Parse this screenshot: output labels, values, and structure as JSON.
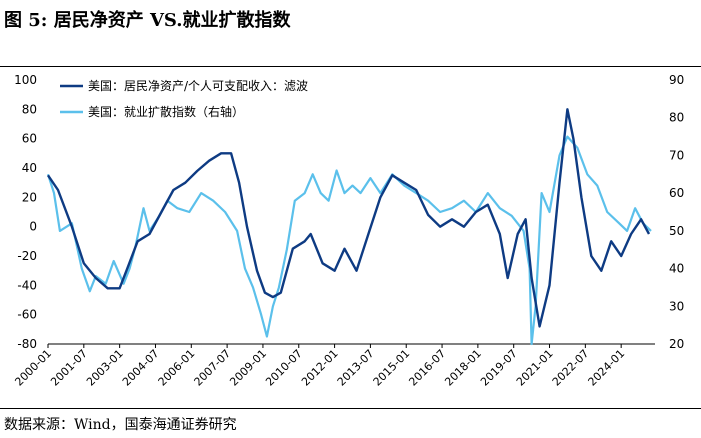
{
  "figure": {
    "title": "图 5:  居民净资产 VS.就业扩散指数",
    "source": "数据来源：Wind，国泰海通证券研究"
  },
  "chart_data": {
    "type": "line",
    "title": "",
    "xlabel": "",
    "ylabel": "",
    "y2label": "",
    "ylim": [
      -80,
      100
    ],
    "yticks": [
      100,
      80,
      60,
      40,
      20,
      0,
      -20,
      -40,
      -60,
      -80
    ],
    "y2lim": [
      20,
      90
    ],
    "y2ticks": [
      90,
      80,
      70,
      60,
      50,
      40,
      30,
      20
    ],
    "xlim": [
      "2000-01",
      "2025-06"
    ],
    "xticks": [
      "2000-01",
      "2001-07",
      "2003-01",
      "2004-07",
      "2006-01",
      "2007-07",
      "2009-01",
      "2010-07",
      "2012-01",
      "2013-07",
      "2015-01",
      "2016-07",
      "2018-01",
      "2019-07",
      "2021-01",
      "2022-07",
      "2024-01"
    ],
    "grid": false,
    "legend_position": "top-left",
    "series": [
      {
        "name": "美国：居民净资产/个人可支配收入：滤波",
        "axis": "left",
        "color": "#0e3b83",
        "x": [
          "2000-01",
          "2000-06",
          "2001-01",
          "2001-07",
          "2002-01",
          "2002-07",
          "2003-01",
          "2003-05",
          "2003-10",
          "2004-04",
          "2004-10",
          "2005-04",
          "2005-10",
          "2006-04",
          "2006-10",
          "2007-04",
          "2007-09",
          "2008-01",
          "2008-05",
          "2008-10",
          "2009-02",
          "2009-06",
          "2009-10",
          "2010-04",
          "2010-10",
          "2011-01",
          "2011-07",
          "2012-01",
          "2012-06",
          "2012-12",
          "2013-06",
          "2013-12",
          "2014-06",
          "2014-12",
          "2015-06",
          "2015-12",
          "2016-06",
          "2016-12",
          "2017-06",
          "2017-12",
          "2018-06",
          "2018-12",
          "2019-04",
          "2019-09",
          "2020-01",
          "2020-04",
          "2020-08",
          "2021-01",
          "2021-06",
          "2021-10",
          "2022-01",
          "2022-05",
          "2022-10",
          "2023-03",
          "2023-08",
          "2024-01",
          "2024-06",
          "2024-11",
          "2025-03"
        ],
        "y": [
          35,
          25,
          0,
          -25,
          -35,
          -42,
          -42,
          -28,
          -10,
          -5,
          10,
          25,
          30,
          38,
          45,
          50,
          50,
          30,
          0,
          -30,
          -45,
          -48,
          -45,
          -15,
          -10,
          -5,
          -25,
          -30,
          -15,
          -30,
          -5,
          20,
          35,
          30,
          25,
          8,
          0,
          5,
          0,
          10,
          15,
          -5,
          -35,
          -5,
          5,
          -35,
          -68,
          -40,
          30,
          80,
          60,
          20,
          -20,
          -30,
          -10,
          -20,
          -5,
          5,
          -5
        ]
      },
      {
        "name": "美国：就业扩散指数（右轴）",
        "axis": "right",
        "color": "#5bc0eb",
        "x": [
          "2000-01",
          "2000-04",
          "2000-07",
          "2001-01",
          "2001-06",
          "2001-10",
          "2002-01",
          "2002-06",
          "2002-10",
          "2003-03",
          "2003-06",
          "2003-09",
          "2004-01",
          "2004-04",
          "2004-09",
          "2005-01",
          "2005-06",
          "2005-12",
          "2006-06",
          "2006-12",
          "2007-06",
          "2007-12",
          "2008-04",
          "2008-08",
          "2008-12",
          "2009-03",
          "2009-06",
          "2009-09",
          "2010-01",
          "2010-05",
          "2010-10",
          "2011-02",
          "2011-06",
          "2011-10",
          "2012-02",
          "2012-06",
          "2012-10",
          "2013-02",
          "2013-07",
          "2013-12",
          "2014-06",
          "2014-12",
          "2015-06",
          "2015-12",
          "2016-06",
          "2016-12",
          "2017-06",
          "2017-12",
          "2018-06",
          "2018-12",
          "2019-06",
          "2019-12",
          "2020-03",
          "2020-04",
          "2020-06",
          "2020-09",
          "2021-01",
          "2021-06",
          "2021-10",
          "2022-03",
          "2022-08",
          "2023-01",
          "2023-06",
          "2023-12",
          "2024-04",
          "2024-08",
          "2024-12",
          "2025-04"
        ],
        "y": [
          65,
          60,
          50,
          52,
          40,
          34,
          38,
          36,
          42,
          36,
          40,
          46,
          56,
          50,
          54,
          58,
          56,
          55,
          60,
          58,
          55,
          50,
          40,
          35,
          28,
          22,
          30,
          35,
          45,
          58,
          60,
          65,
          60,
          58,
          66,
          60,
          62,
          60,
          64,
          60,
          65,
          62,
          60,
          58,
          55,
          56,
          58,
          55,
          60,
          56,
          54,
          50,
          40,
          15,
          30,
          60,
          55,
          70,
          75,
          72,
          65,
          62,
          55,
          52,
          50,
          56,
          52,
          50
        ]
      }
    ]
  }
}
